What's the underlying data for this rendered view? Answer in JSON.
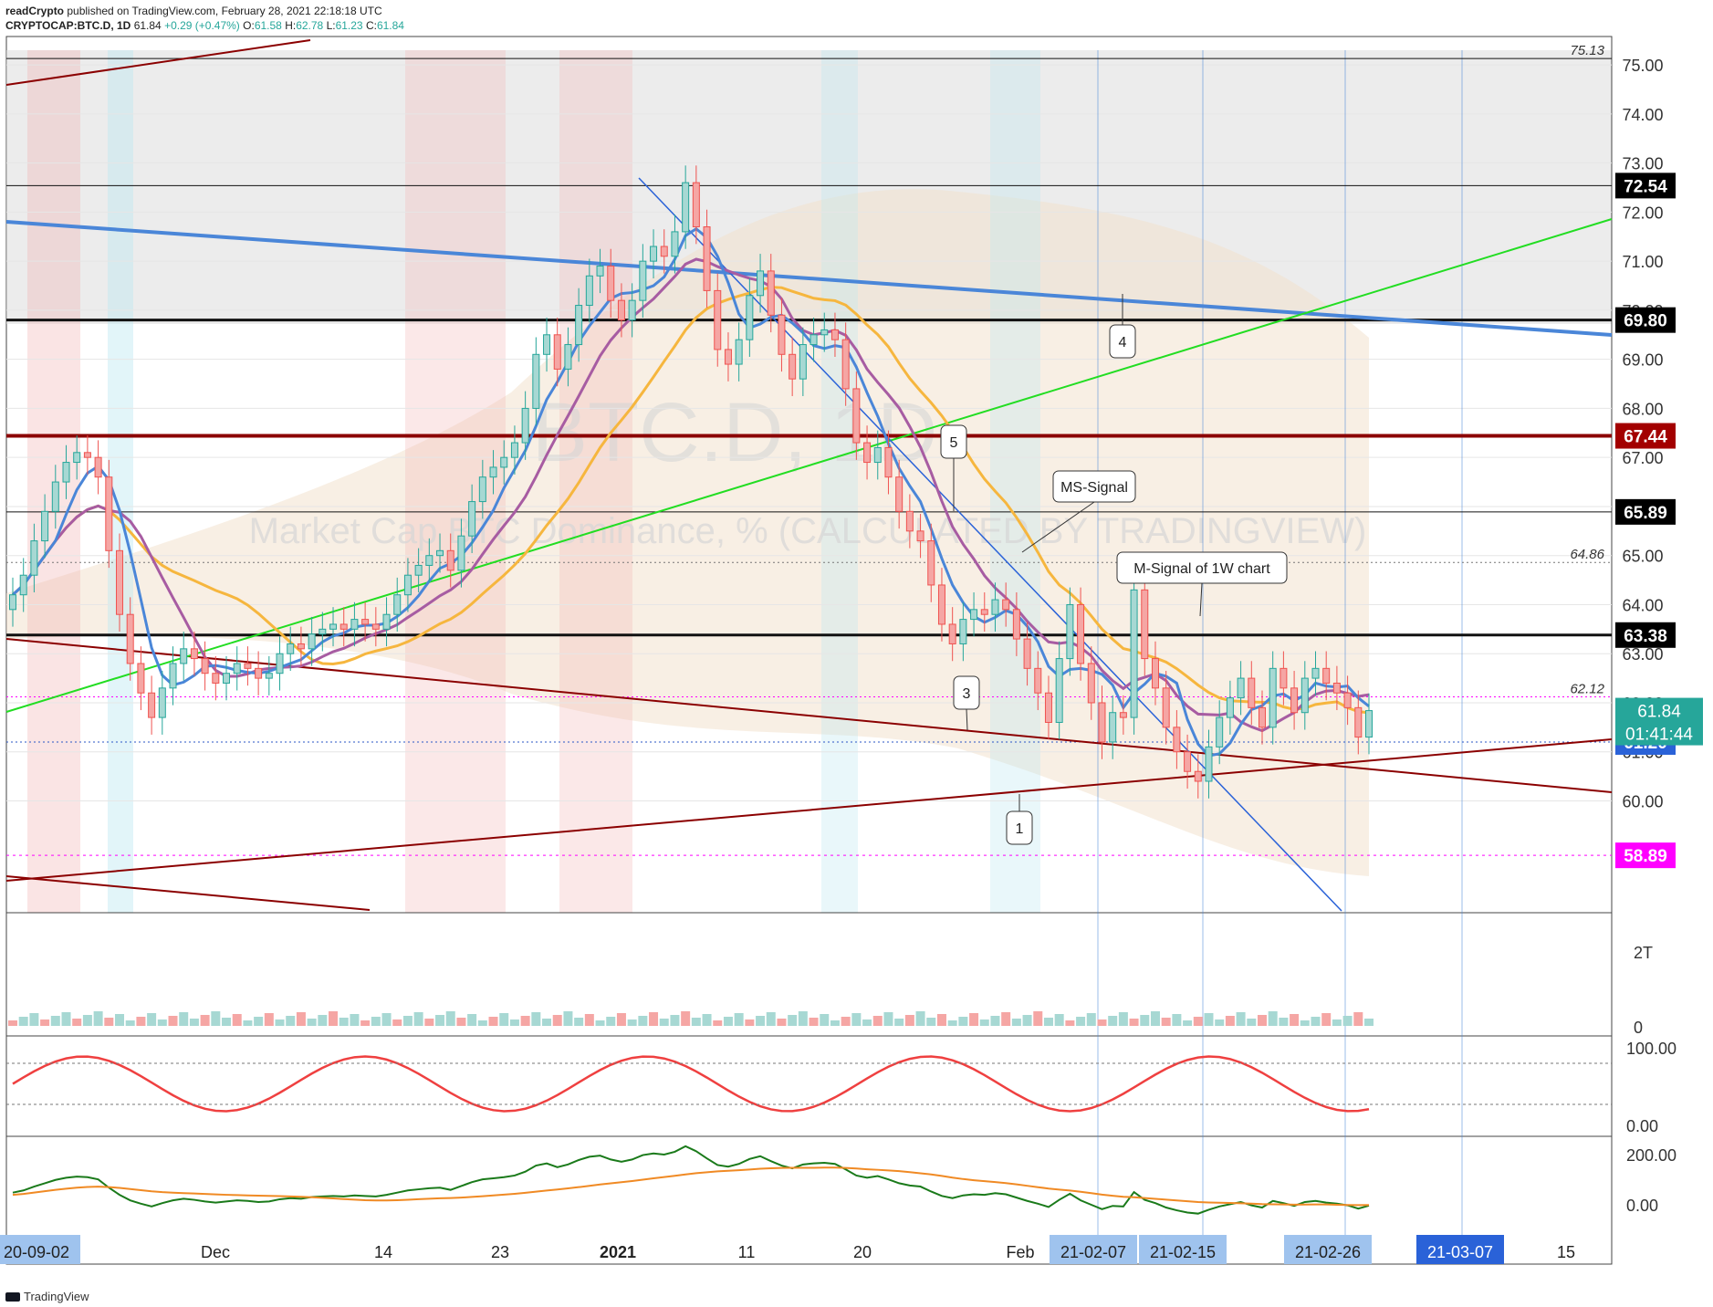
{
  "header": {
    "publisher": "readCrypto",
    "published_text": "published on TradingView.com, February 28, 2021 22:18:18 UTC",
    "symbol": "CRYPTOCAP:BTC.D, 1D",
    "last": "61.84",
    "change": "+0.29 (+0.47%)",
    "open_label": "O:",
    "open": "61.58",
    "high_label": "H:",
    "high": "62.78",
    "low_label": "L:",
    "low": "61.23",
    "close_label": "C:",
    "close": "61.84"
  },
  "watermark": {
    "symbol": "BTC.D, 1D",
    "description": "Market Cap BTC Dominance, % (CALCULATED BY TRADINGVIEW)"
  },
  "colors": {
    "up": "#26a69a",
    "down": "#ef5350",
    "upfill": "#a7d8d3",
    "downfill": "#f5a6a4",
    "blue_line": "#4a86d8",
    "dark_red": "#8b0000",
    "green_line": "#22dd22",
    "orange": "#f6b63e",
    "purple": "#a75ca2",
    "magenta": "#ff00ff",
    "grid": "#e6e6e6"
  },
  "chart_data": {
    "type": "candlestick",
    "y_axis": {
      "range": [
        58.0,
        75.3
      ],
      "ticks": [
        "60.00",
        "61.00",
        "62.00",
        "63.00",
        "64.00",
        "65.00",
        "66.00",
        "67.00",
        "68.00",
        "69.00",
        "70.00",
        "71.00",
        "72.00",
        "73.00",
        "74.00",
        "75.00"
      ]
    },
    "x_axis": {
      "labels": [
        "20-09-02",
        "Dec",
        "14",
        "23",
        "2021",
        "11",
        "20",
        "Feb",
        "21-02-07",
        "21-02-15",
        "21-02-26",
        "21-03-07",
        "15"
      ],
      "highlighted": [
        "20-09-02",
        "21-02-07",
        "21-02-15",
        "21-02-26",
        "21-03-07"
      ]
    },
    "close_series": [
      64.2,
      64.6,
      65.3,
      65.9,
      66.5,
      66.9,
      67.1,
      67.0,
      66.6,
      65.1,
      63.8,
      62.8,
      62.2,
      61.7,
      62.3,
      62.8,
      63.1,
      62.9,
      62.6,
      62.4,
      62.6,
      62.8,
      62.7,
      62.5,
      62.6,
      63.0,
      63.2,
      63.1,
      63.4,
      63.5,
      63.6,
      63.5,
      63.7,
      63.6,
      63.5,
      63.8,
      64.2,
      64.6,
      64.8,
      65.0,
      65.1,
      64.7,
      65.4,
      66.1,
      66.6,
      66.8,
      67.0,
      67.3,
      68.0,
      69.1,
      69.5,
      68.8,
      69.3,
      70.1,
      70.7,
      70.9,
      70.2,
      69.8,
      70.2,
      71.0,
      71.3,
      71.1,
      71.6,
      72.6,
      71.7,
      70.4,
      69.2,
      68.9,
      69.4,
      70.3,
      70.8,
      69.9,
      69.1,
      68.6,
      69.3,
      69.5,
      69.6,
      69.4,
      68.4,
      67.3,
      66.9,
      67.2,
      66.6,
      65.9,
      65.5,
      65.3,
      64.4,
      63.6,
      63.2,
      63.7,
      63.9,
      63.8,
      64.1,
      63.9,
      63.3,
      62.7,
      62.2,
      61.6,
      62.9,
      64.0,
      62.8,
      62.0,
      61.2,
      61.8,
      61.7,
      64.3,
      62.9,
      62.3,
      61.5,
      61.0,
      60.6,
      60.4,
      61.1,
      61.7,
      62.1,
      62.5,
      61.9,
      61.5,
      62.7,
      62.3,
      61.8,
      62.5,
      62.7,
      62.4,
      62.2,
      61.9,
      61.3,
      61.84
    ],
    "horizontal_levels": [
      {
        "value": 75.13,
        "label": "75.13",
        "boxed": false
      },
      {
        "value": 72.54,
        "label": "72.54",
        "boxed": true
      },
      {
        "value": 69.8,
        "label": "69.80",
        "boxed": true
      },
      {
        "value": 67.44,
        "label": "67.44",
        "boxed": true
      },
      {
        "value": 65.89,
        "label": "65.89",
        "boxed": true
      },
      {
        "value": 64.86,
        "label": "64.86",
        "boxed": false
      },
      {
        "value": 63.38,
        "label": "63.38",
        "boxed": true
      },
      {
        "value": 62.12,
        "label": "62.12",
        "boxed": false
      },
      {
        "value": 61.2,
        "label": "61.20",
        "boxed": true
      },
      {
        "value": 58.89,
        "label": "58.89",
        "boxed": true
      }
    ],
    "price_box": {
      "value": 61.84,
      "label": "61.84",
      "countdown": "01:41:44"
    },
    "annotations": [
      "MS-Signal",
      "M-Signal of 1W chart",
      "1",
      "3",
      "4",
      "5"
    ]
  },
  "volume_panel": {
    "axis_labels": [
      "2T",
      "0"
    ]
  },
  "oscillator_panel": {
    "axis_labels": [
      "100.00",
      "0.00"
    ]
  },
  "momentum_panel": {
    "axis_labels": [
      "200.00",
      "0.00"
    ]
  },
  "footer": {
    "brand": "TradingView"
  }
}
